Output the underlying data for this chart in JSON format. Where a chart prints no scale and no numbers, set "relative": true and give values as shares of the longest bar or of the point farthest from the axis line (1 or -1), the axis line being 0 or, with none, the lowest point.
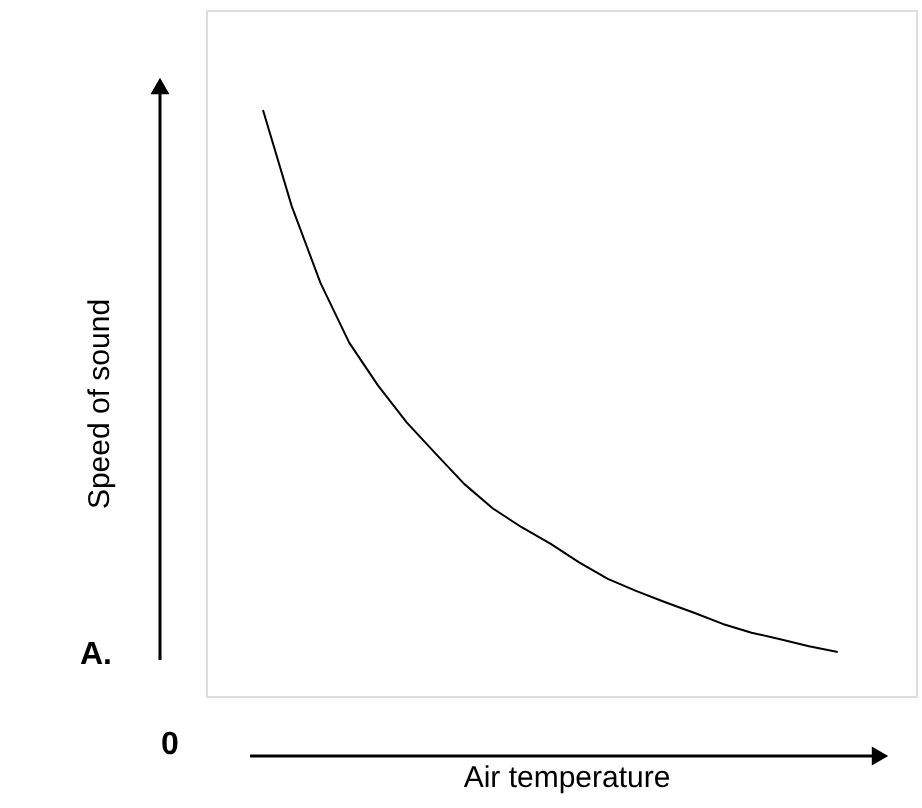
{
  "chart_data": {
    "type": "line",
    "relative": true,
    "xlabel": "Air temperature",
    "ylabel": "Speed of sound",
    "annotations": [
      "0",
      "A."
    ],
    "categories": [
      null,
      null,
      null,
      null,
      null,
      null,
      null,
      null,
      null,
      null,
      null,
      null,
      null,
      null,
      null,
      null,
      null,
      null,
      null,
      null,
      null
    ],
    "series": [
      {
        "color": "#000000",
        "values": [
          1,
          0.836,
          0.705,
          0.603,
          0.53,
          0.467,
          0.414,
          0.362,
          0.32,
          0.288,
          0.26,
          0.228,
          0.2,
          0.179,
          0.16,
          0.142,
          0.123,
          0.108,
          0.097,
          0.085,
          0.075
        ]
      }
    ]
  }
}
